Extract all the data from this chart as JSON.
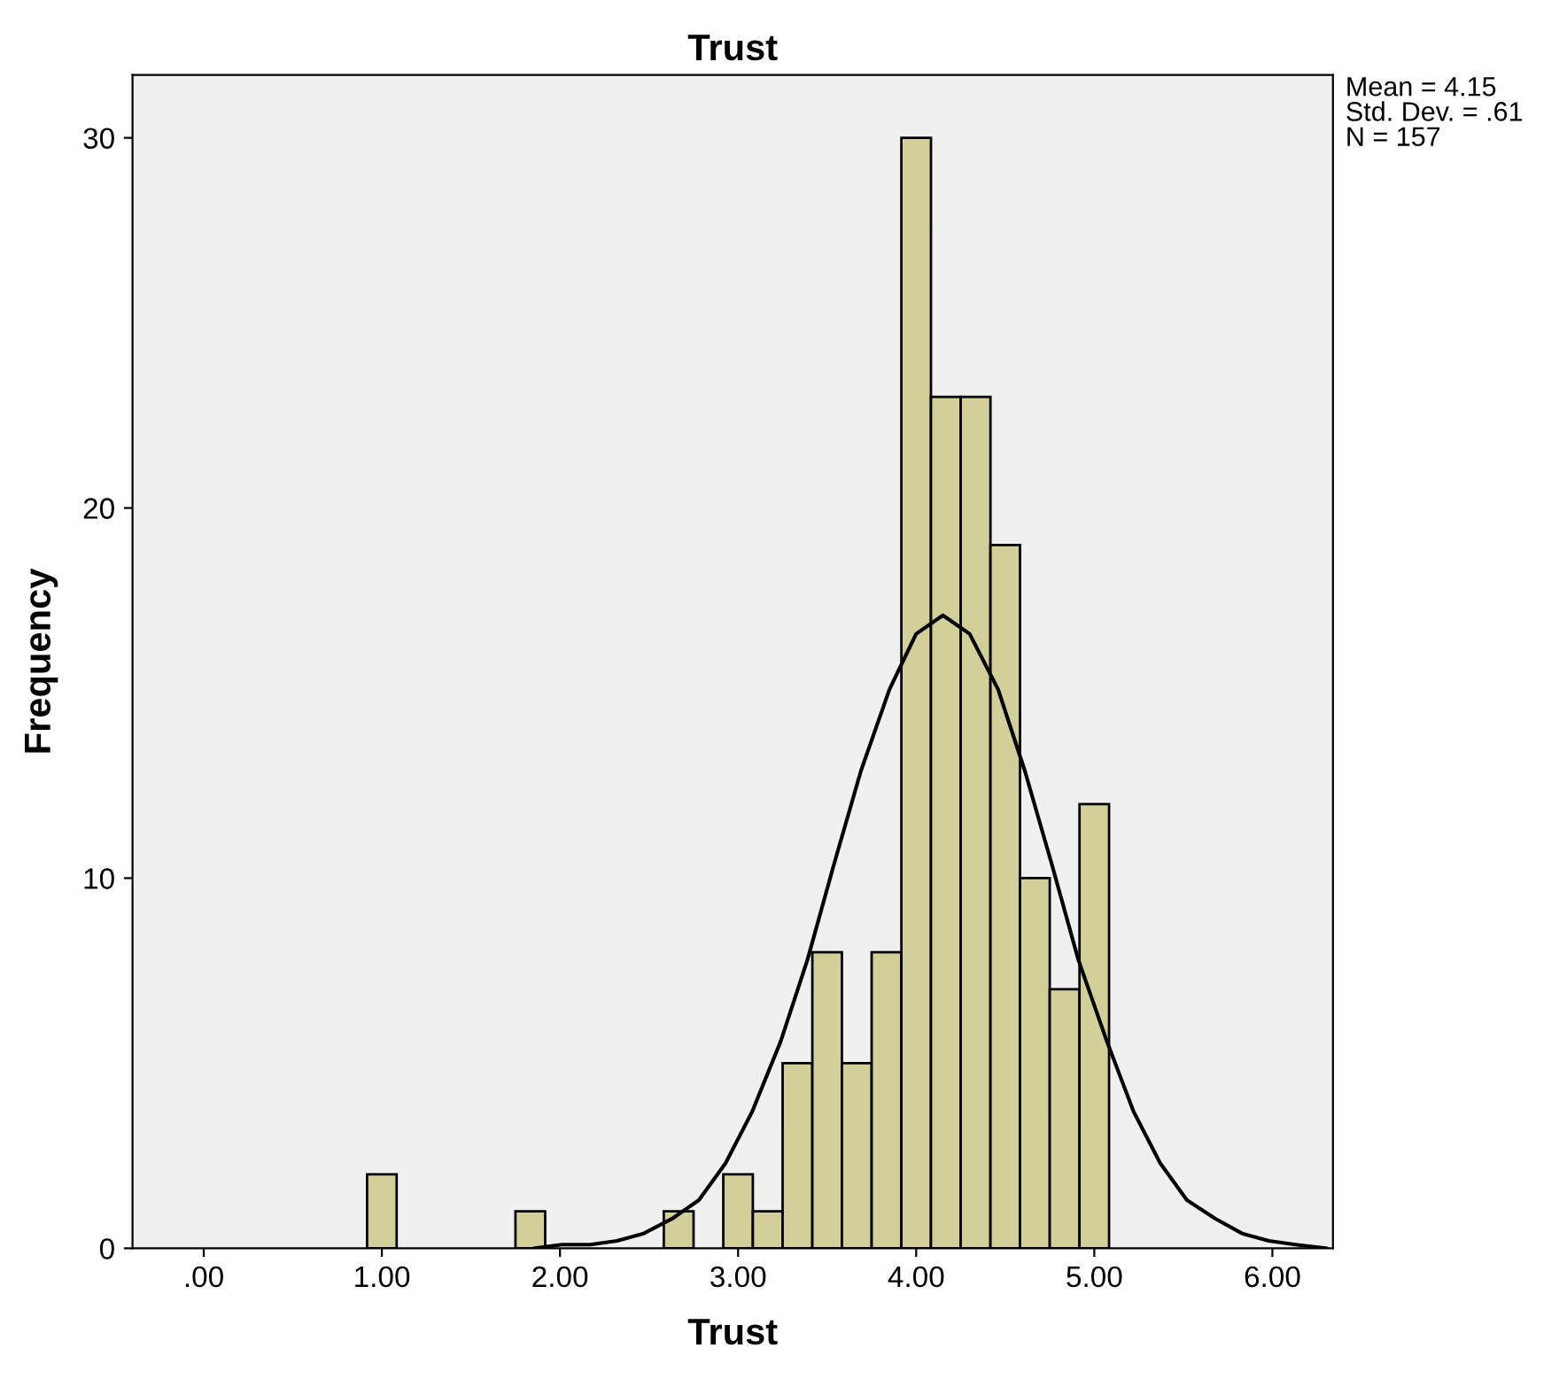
{
  "chart_data": {
    "type": "histogram",
    "title": "Trust",
    "xlabel": "Trust",
    "ylabel": "Frequency",
    "bins": [
      0.917,
      1.083,
      1.25,
      1.417,
      1.583,
      1.75,
      1.917,
      2.083,
      2.25,
      2.417,
      2.583,
      2.75,
      2.917,
      3.083,
      3.25,
      3.417,
      3.583,
      3.75,
      3.917,
      4.083,
      4.25,
      4.417,
      4.583,
      4.75,
      4.917,
      5.083
    ],
    "values": [
      2,
      0,
      0,
      0,
      0,
      1,
      0,
      0,
      0,
      0,
      1,
      0,
      2,
      1,
      5,
      8,
      5,
      8,
      30,
      23,
      23,
      19,
      10,
      7,
      12
    ],
    "color": "#d3cf98",
    "series": [
      {
        "type": "line",
        "color": "#000000",
        "x": [
          1.86,
          2.01,
          2.17,
          2.32,
          2.47,
          2.63,
          2.78,
          2.93,
          3.08,
          3.24,
          3.39,
          3.54,
          3.69,
          3.85,
          4.0,
          4.15,
          4.3,
          4.46,
          4.61,
          4.76,
          4.91,
          5.07,
          5.22,
          5.37,
          5.52,
          5.68,
          5.83,
          5.98,
          6.13,
          6.3
        ],
        "values": [
          0.0,
          0.1,
          0.1,
          0.2,
          0.4,
          0.8,
          1.3,
          2.3,
          3.7,
          5.6,
          7.8,
          10.4,
          12.9,
          15.1,
          16.6,
          17.1,
          16.6,
          15.1,
          12.9,
          10.4,
          7.8,
          5.6,
          3.7,
          2.3,
          1.3,
          0.8,
          0.4,
          0.2,
          0.1,
          0.0
        ]
      }
    ],
    "xlim": [
      -0.4,
      6.34
    ],
    "ylim": [
      0,
      31.7
    ],
    "xticks": [
      {
        "value": 0,
        "label": ".00"
      },
      {
        "value": 1,
        "label": "1.00"
      },
      {
        "value": 2,
        "label": "2.00"
      },
      {
        "value": 3,
        "label": "3.00"
      },
      {
        "value": 4,
        "label": "4.00"
      },
      {
        "value": 5,
        "label": "5.00"
      },
      {
        "value": 6,
        "label": "6.00"
      }
    ],
    "yticks": [
      0,
      10,
      20,
      30
    ],
    "annotations": [
      "Mean = 4.15",
      "Std. Dev. = .61",
      "N = 157"
    ],
    "grid": false,
    "legend": false
  }
}
